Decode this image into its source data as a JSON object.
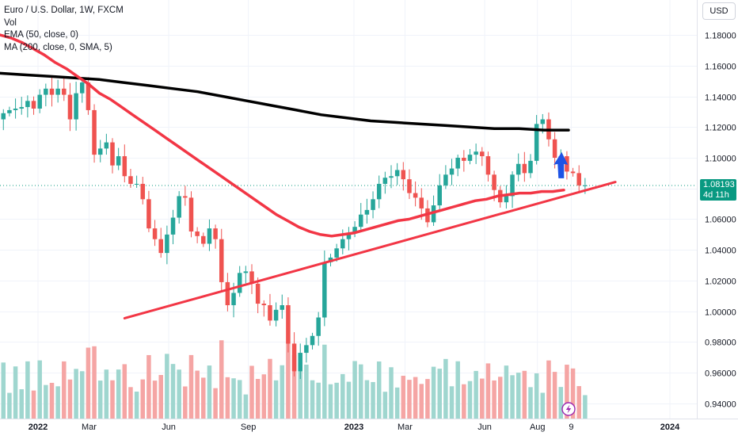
{
  "legend": {
    "title": "Euro / U.S. Dollar, 1W, FXCM",
    "vol": "Vol",
    "ema": "EMA (50, close, 0)",
    "ma": "MA (200, close, 0, SMA, 5)"
  },
  "currency_label": "USD",
  "last_price": {
    "value": "1.08193",
    "countdown": "4d 11h"
  },
  "colors": {
    "up": "#26a69a",
    "down": "#ef5350",
    "ema": "#f23645",
    "ma": "#000000",
    "trendline": "#f23645",
    "arrow": "#1e53e5",
    "price_tag": "#089981"
  },
  "chart_data": {
    "type": "candlestick",
    "title": "Euro / U.S. Dollar, 1W, FXCM",
    "y_axis": {
      "ticks": [
        "1.18000",
        "1.16000",
        "1.14000",
        "1.12000",
        "1.10000",
        "1.08000",
        "1.06000",
        "1.04000",
        "1.02000",
        "1.00000",
        "0.98000",
        "0.96000",
        "0.94000"
      ],
      "ylim": [
        0.932,
        1.19
      ]
    },
    "x_axis": {
      "ticks": [
        {
          "label": "2022",
          "date": "2022-01-01",
          "bold": true
        },
        {
          "label": "Mar",
          "date": "2022-03-01",
          "bold": false
        },
        {
          "label": "Jun",
          "date": "2022-06-01",
          "bold": false
        },
        {
          "label": "Sep",
          "date": "2022-09-01",
          "bold": false
        },
        {
          "label": "2023",
          "date": "2023-01-01",
          "bold": true
        },
        {
          "label": "Mar",
          "date": "2023-03-01",
          "bold": false
        },
        {
          "label": "Jun",
          "date": "2023-06-01",
          "bold": false
        },
        {
          "label": "Aug",
          "date": "2023-08-01",
          "bold": false
        },
        {
          "label": "9",
          "date": "2023-09-09",
          "bold": false
        },
        {
          "label": "2024",
          "date": "2024-01-01",
          "bold": true
        }
      ],
      "range": [
        "2021-11-15",
        "2024-02-05"
      ]
    },
    "first_candle_week": "2021-11-22",
    "close_series": [
      1.129,
      1.131,
      1.132,
      1.133,
      1.137,
      1.132,
      1.141,
      1.145,
      1.141,
      1.145,
      1.141,
      1.125,
      1.142,
      1.149,
      1.131,
      1.102,
      1.106,
      1.11,
      1.095,
      1.101,
      1.088,
      1.083,
      1.083,
      1.073,
      1.054,
      1.047,
      1.038,
      1.05,
      1.061,
      1.075,
      1.074,
      1.052,
      1.049,
      1.044,
      1.054,
      1.047,
      1.019,
      1.004,
      1.012,
      1.025,
      1.026,
      1.018,
      1.005,
      1.004,
      0.994,
      1.001,
      1.004,
      0.979,
      0.961,
      0.973,
      0.978,
      0.984,
      0.996,
      1.032,
      1.035,
      1.041,
      1.047,
      1.051,
      1.055,
      1.063,
      1.066,
      1.073,
      1.083,
      1.087,
      1.088,
      1.092,
      1.086,
      1.077,
      1.074,
      1.067,
      1.058,
      1.069,
      1.082,
      1.089,
      1.093,
      1.1,
      1.098,
      1.102,
      1.104,
      1.101,
      1.089,
      1.079,
      1.071,
      1.075,
      1.089,
      1.096,
      1.09,
      1.098,
      1.122,
      1.125,
      1.112,
      1.1,
      1.101,
      1.091,
      1.09,
      1.082,
      1.082
    ],
    "ema_50": [
      1.18,
      1.178,
      1.175,
      1.171,
      1.167,
      1.162,
      1.158,
      1.153,
      1.148,
      1.142,
      1.138,
      1.133,
      1.128,
      1.123,
      1.118,
      1.113,
      1.108,
      1.103,
      1.098,
      1.093,
      1.088,
      1.083,
      1.078,
      1.073,
      1.068,
      1.063,
      1.059,
      1.055,
      1.052,
      1.05,
      1.049,
      1.05,
      1.051,
      1.053,
      1.055,
      1.057,
      1.059,
      1.06,
      1.062,
      1.064,
      1.066,
      1.068,
      1.07,
      1.072,
      1.073,
      1.075,
      1.076,
      1.077,
      1.077,
      1.078,
      1.078,
      1.079
    ],
    "ma_200": [
      1.155,
      1.154,
      1.153,
      1.152,
      1.151,
      1.149,
      1.147,
      1.145,
      1.143,
      1.14,
      1.137,
      1.134,
      1.131,
      1.128,
      1.126,
      1.124,
      1.123,
      1.122,
      1.121,
      1.12,
      1.119,
      1.119,
      1.118,
      1.118
    ],
    "annotations": [
      {
        "type": "trendline",
        "from": {
          "date": "2022-04-11",
          "price": 0.9955
        },
        "to": {
          "date": "2023-10-30",
          "price": 1.0842
        }
      },
      {
        "type": "arrow",
        "direction": "up",
        "date": "2023-08-28",
        "price": 1.097
      }
    ],
    "volume": {
      "shown": true,
      "axis": "none"
    }
  }
}
